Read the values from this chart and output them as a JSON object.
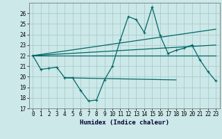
{
  "title": "",
  "xlabel": "Humidex (Indice chaleur)",
  "background_color": "#cce8e8",
  "grid_color": "#aacccc",
  "line_color": "#006666",
  "ylim": [
    17,
    27
  ],
  "xlim": [
    -0.5,
    23.5
  ],
  "yticks": [
    17,
    18,
    19,
    20,
    21,
    22,
    23,
    24,
    25,
    26
  ],
  "xticks": [
    0,
    1,
    2,
    3,
    4,
    5,
    6,
    7,
    8,
    9,
    10,
    11,
    12,
    13,
    14,
    15,
    16,
    17,
    18,
    19,
    20,
    21,
    22,
    23
  ],
  "series1_x": [
    0,
    1,
    2,
    3,
    4,
    5,
    6,
    7,
    8,
    9,
    10,
    11,
    12,
    13,
    14,
    15,
    16,
    17,
    18,
    19,
    20,
    21,
    22,
    23
  ],
  "series1_y": [
    22.0,
    20.7,
    20.8,
    20.9,
    19.9,
    19.9,
    18.7,
    17.7,
    17.8,
    19.7,
    21.0,
    23.5,
    25.7,
    25.4,
    24.2,
    26.6,
    23.9,
    22.2,
    22.5,
    22.7,
    23.0,
    21.6,
    20.5,
    19.6
  ],
  "series2_x": [
    0,
    23
  ],
  "series2_y": [
    22.0,
    24.5
  ],
  "series3_x": [
    0,
    23
  ],
  "series3_y": [
    22.0,
    23.0
  ],
  "series4_x": [
    0,
    23
  ],
  "series4_y": [
    22.0,
    22.0
  ],
  "series5_x": [
    4,
    18
  ],
  "series5_y": [
    19.9,
    19.7
  ]
}
